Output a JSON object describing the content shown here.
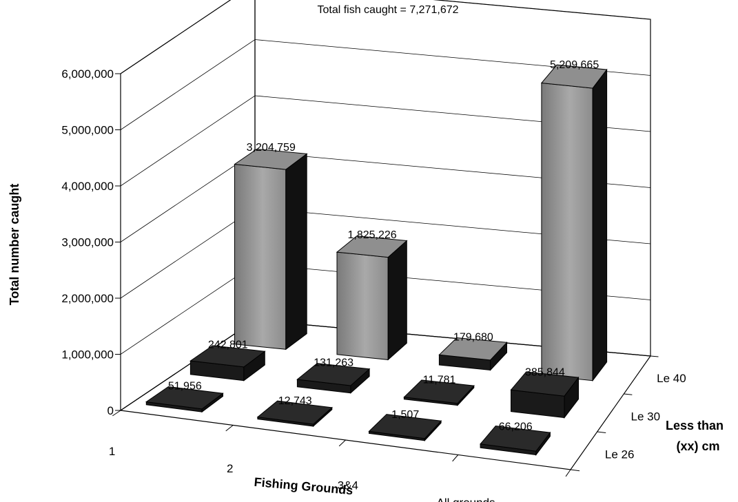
{
  "chart_data": {
    "type": "bar",
    "title": "Total fish caught = 7,271,672",
    "xlabel": "Fishing Grounds",
    "ylabel": "Total number caught",
    "zlabel_line1": "Less than",
    "zlabel_line2": "(xx) cm",
    "categories": [
      "1",
      "2",
      "3&4",
      "All grounds"
    ],
    "series": [
      {
        "name": "Le 26",
        "values": [
          51956,
          12743,
          1507,
          66206
        ]
      },
      {
        "name": "Le 30",
        "values": [
          242801,
          131263,
          11781,
          385844
        ]
      },
      {
        "name": "Le 40",
        "values": [
          3204759,
          1825226,
          179680,
          5209665
        ]
      }
    ],
    "value_labels": [
      [
        "51,956",
        "12,743",
        "1,507",
        "66,206"
      ],
      [
        "242,801",
        "131,263",
        "11,781",
        "385,844"
      ],
      [
        "3,204,759",
        "1,825,226",
        "179,680",
        "5,209,665"
      ]
    ],
    "ylim": [
      0,
      6000000
    ],
    "yticks": [
      "0",
      "1,000,000",
      "2,000,000",
      "3,000,000",
      "4,000,000",
      "5,000,000",
      "6,000,000"
    ],
    "grid": true,
    "projection": "3d"
  }
}
